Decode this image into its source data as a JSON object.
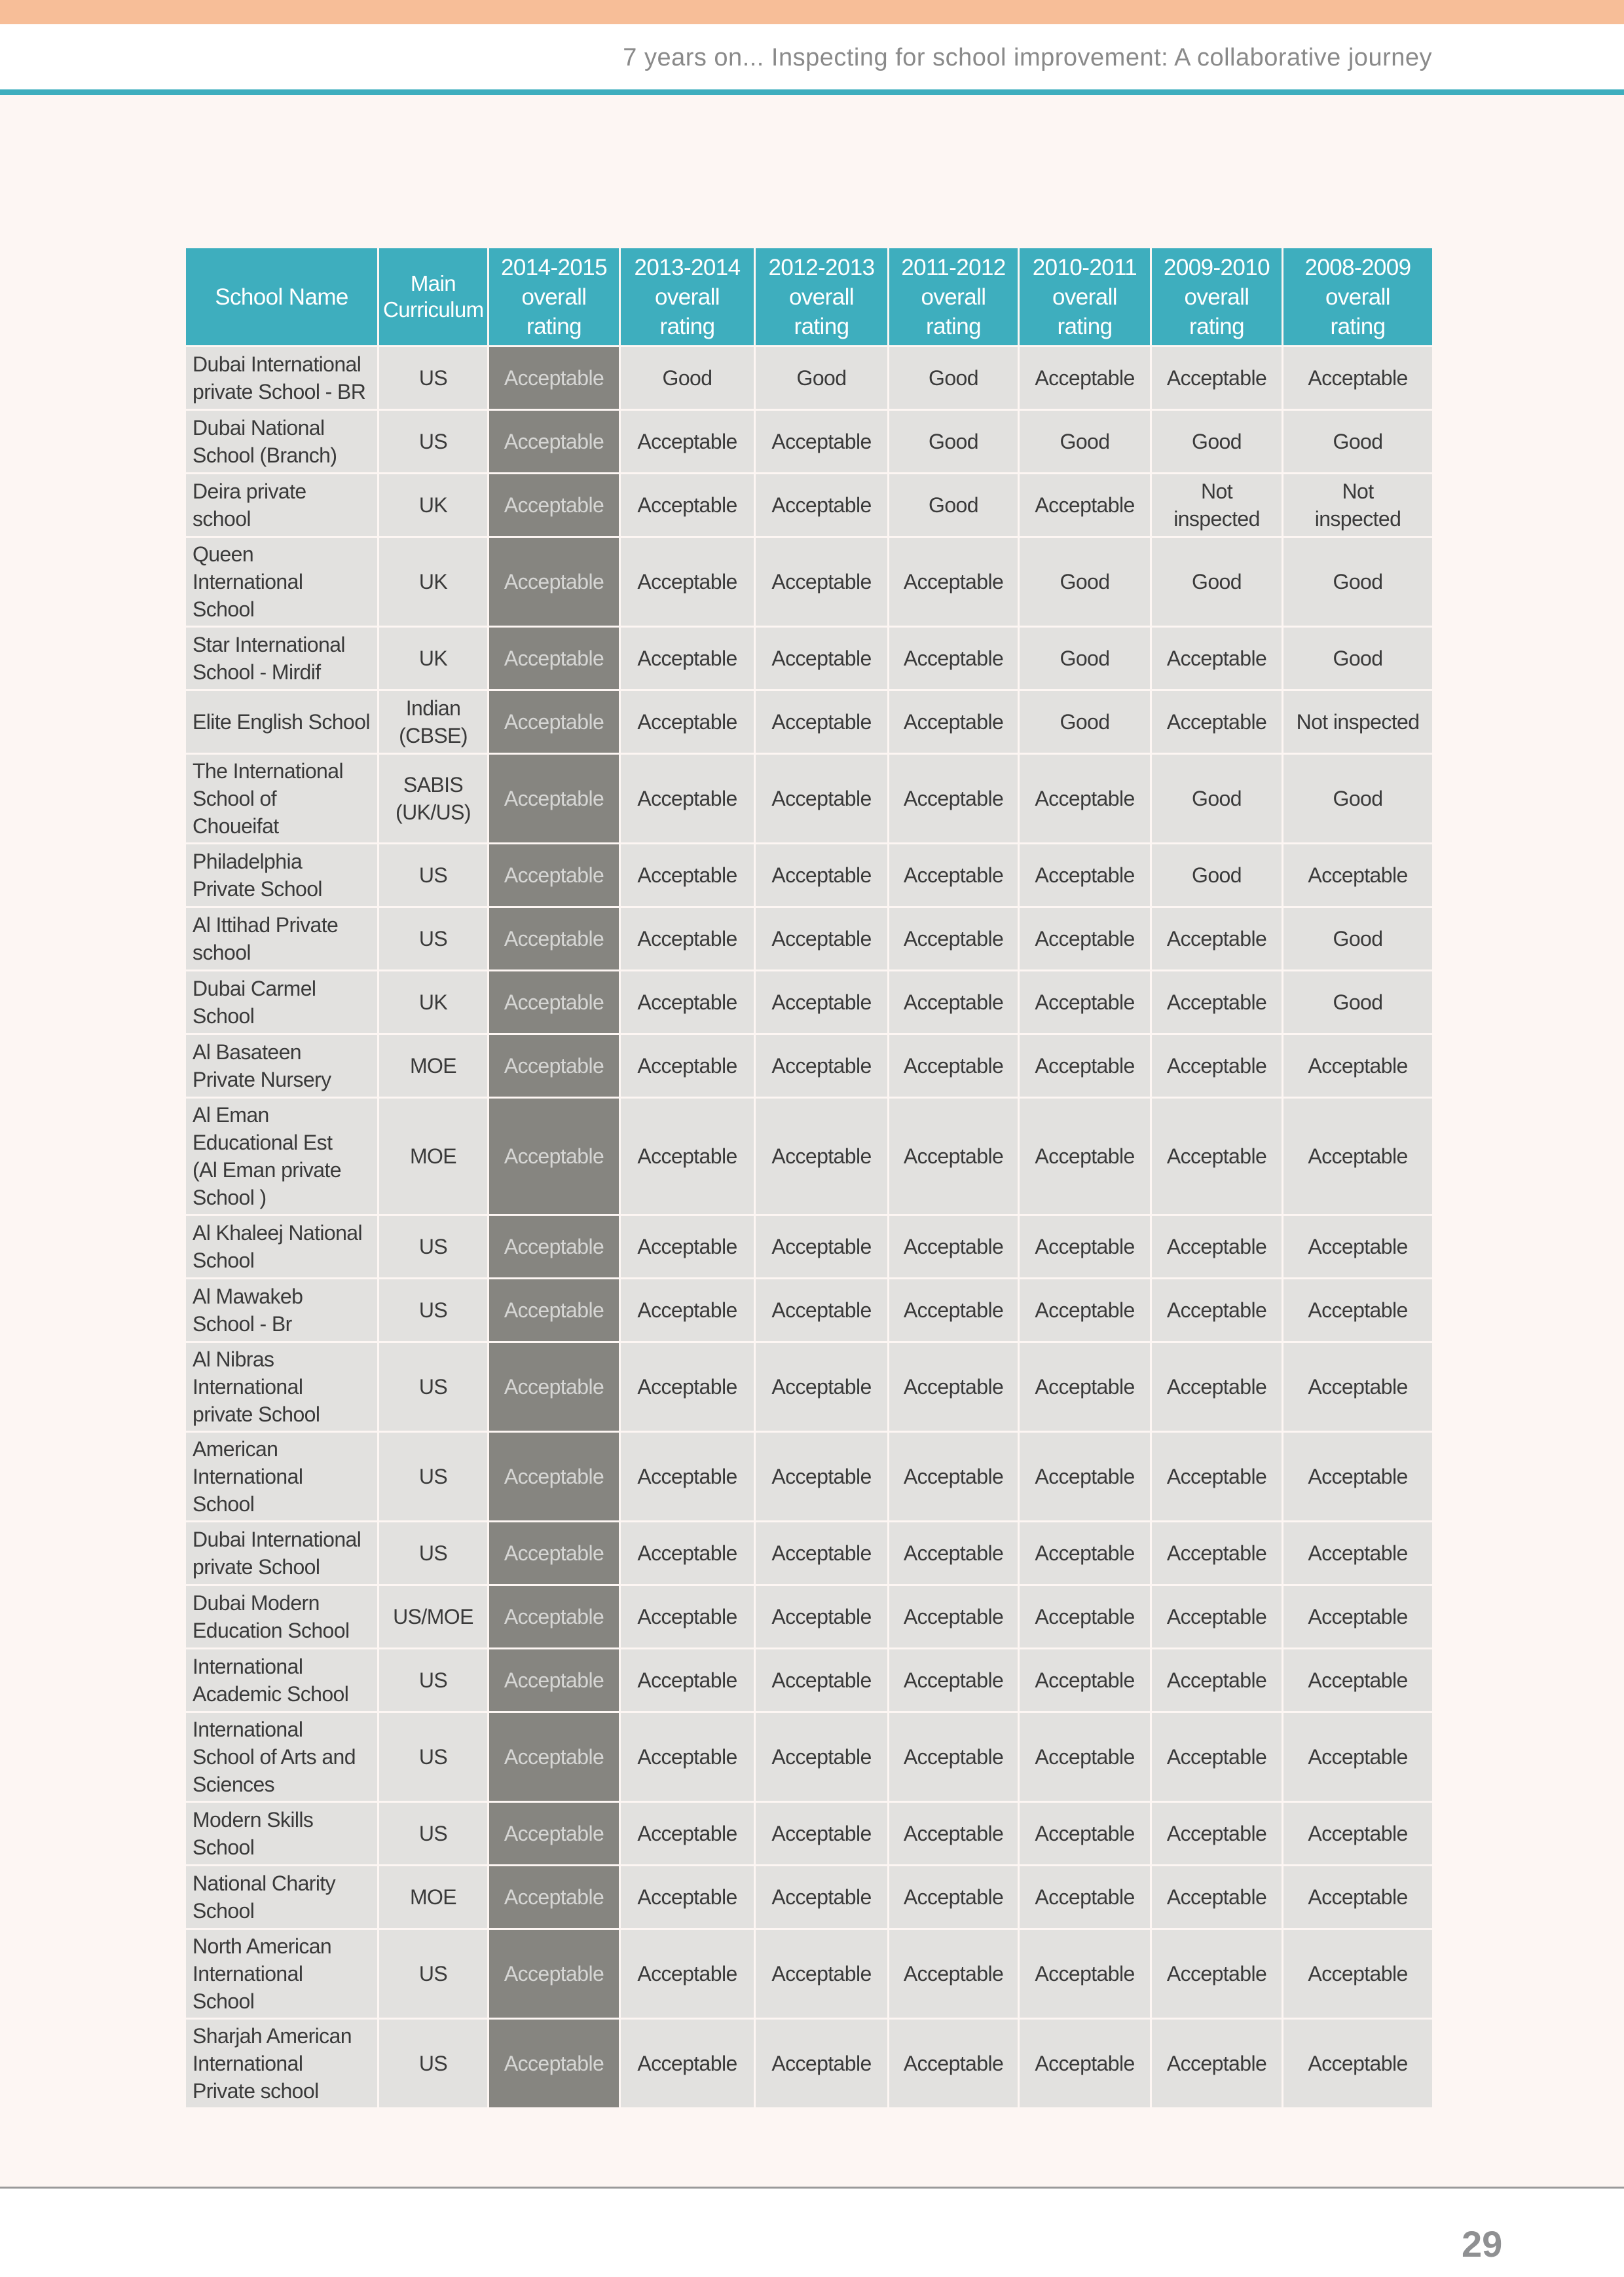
{
  "header": {
    "title": "7 years on... Inspecting for school improvement: A collaborative journey"
  },
  "colors": {
    "top_bar": "#f7be98",
    "accent": "#3eaebe",
    "highlight_column": "#868580",
    "cell": "#e2e1df"
  },
  "table": {
    "columns": [
      "School Name",
      "Main\nCurriculum",
      "2014-2015\noverall\nrating",
      "2013-2014\noverall\nrating",
      "2012-2013\noverall\nrating",
      "2011-2012\noverall\nrating",
      "2010-2011\noverall\nrating",
      "2009-2010\noverall\nrating",
      "2008-2009\noverall\nrating"
    ],
    "rows": [
      {
        "school": "Dubai International\nprivate School - BR",
        "curriculum": "US",
        "ratings": [
          "Acceptable",
          "Good",
          "Good",
          "Good",
          "Acceptable",
          "Acceptable",
          "Acceptable"
        ]
      },
      {
        "school": "Dubai National\nSchool (Branch)",
        "curriculum": "US",
        "ratings": [
          "Acceptable",
          "Acceptable",
          "Acceptable",
          "Good",
          "Good",
          "Good",
          "Good"
        ]
      },
      {
        "school": "Deira private\nschool",
        "curriculum": "UK",
        "ratings": [
          "Acceptable",
          "Acceptable",
          "Acceptable",
          "Good",
          "Acceptable",
          "Not\ninspected",
          "Not\ninspected"
        ]
      },
      {
        "school": "Queen\nInternational\nSchool",
        "curriculum": "UK",
        "ratings": [
          "Acceptable",
          "Acceptable",
          "Acceptable",
          "Acceptable",
          "Good",
          "Good",
          "Good"
        ]
      },
      {
        "school": "Star International\nSchool - Mirdif",
        "curriculum": "UK",
        "ratings": [
          "Acceptable",
          "Acceptable",
          "Acceptable",
          "Acceptable",
          "Good",
          "Acceptable",
          "Good"
        ]
      },
      {
        "school": "Elite English School",
        "curriculum": "Indian\n(CBSE)",
        "ratings": [
          "Acceptable",
          "Acceptable",
          "Acceptable",
          "Acceptable",
          "Good",
          "Acceptable",
          "Not inspected"
        ]
      },
      {
        "school": "The International\nSchool of\nChoueifat",
        "curriculum": "SABIS\n(UK/US)",
        "ratings": [
          "Acceptable",
          "Acceptable",
          "Acceptable",
          "Acceptable",
          "Acceptable",
          "Good",
          "Good"
        ]
      },
      {
        "school": "Philadelphia\nPrivate School",
        "curriculum": "US",
        "ratings": [
          "Acceptable",
          "Acceptable",
          "Acceptable",
          "Acceptable",
          "Acceptable",
          "Good",
          "Acceptable"
        ]
      },
      {
        "school": "Al Ittihad Private\nschool",
        "curriculum": "US",
        "ratings": [
          "Acceptable",
          "Acceptable",
          "Acceptable",
          "Acceptable",
          "Acceptable",
          "Acceptable",
          "Good"
        ]
      },
      {
        "school": "Dubai Carmel\nSchool",
        "curriculum": "UK",
        "ratings": [
          "Acceptable",
          "Acceptable",
          "Acceptable",
          "Acceptable",
          "Acceptable",
          "Acceptable",
          "Good"
        ]
      },
      {
        "school": "Al Basateen\nPrivate Nursery",
        "curriculum": "MOE",
        "ratings": [
          "Acceptable",
          "Acceptable",
          "Acceptable",
          "Acceptable",
          "Acceptable",
          "Acceptable",
          "Acceptable"
        ]
      },
      {
        "school": "Al Eman\nEducational Est\n(Al Eman private\nSchool )",
        "curriculum": "MOE",
        "ratings": [
          "Acceptable",
          "Acceptable",
          "Acceptable",
          "Acceptable",
          "Acceptable",
          "Acceptable",
          "Acceptable"
        ]
      },
      {
        "school": "Al Khaleej National\nSchool",
        "curriculum": "US",
        "ratings": [
          "Acceptable",
          "Acceptable",
          "Acceptable",
          "Acceptable",
          "Acceptable",
          "Acceptable",
          "Acceptable"
        ]
      },
      {
        "school": "Al Mawakeb\nSchool - Br",
        "curriculum": "US",
        "ratings": [
          "Acceptable",
          "Acceptable",
          "Acceptable",
          "Acceptable",
          "Acceptable",
          "Acceptable",
          "Acceptable"
        ]
      },
      {
        "school": "Al Nibras\nInternational\nprivate School",
        "curriculum": "US",
        "ratings": [
          "Acceptable",
          "Acceptable",
          "Acceptable",
          "Acceptable",
          "Acceptable",
          "Acceptable",
          "Acceptable"
        ]
      },
      {
        "school": "American\nInternational\nSchool",
        "curriculum": "US",
        "ratings": [
          "Acceptable",
          "Acceptable",
          "Acceptable",
          "Acceptable",
          "Acceptable",
          "Acceptable",
          "Acceptable"
        ]
      },
      {
        "school": "Dubai International\nprivate School",
        "curriculum": "US",
        "ratings": [
          "Acceptable",
          "Acceptable",
          "Acceptable",
          "Acceptable",
          "Acceptable",
          "Acceptable",
          "Acceptable"
        ]
      },
      {
        "school": "Dubai Modern\nEducation School",
        "curriculum": "US/MOE",
        "ratings": [
          "Acceptable",
          "Acceptable",
          "Acceptable",
          "Acceptable",
          "Acceptable",
          "Acceptable",
          "Acceptable"
        ]
      },
      {
        "school": "International\nAcademic School",
        "curriculum": "US",
        "ratings": [
          "Acceptable",
          "Acceptable",
          "Acceptable",
          "Acceptable",
          "Acceptable",
          "Acceptable",
          "Acceptable"
        ]
      },
      {
        "school": "International\nSchool of Arts and\nSciences",
        "curriculum": "US",
        "ratings": [
          "Acceptable",
          "Acceptable",
          "Acceptable",
          "Acceptable",
          "Acceptable",
          "Acceptable",
          "Acceptable"
        ]
      },
      {
        "school": "Modern Skills\nSchool",
        "curriculum": "US",
        "ratings": [
          "Acceptable",
          "Acceptable",
          "Acceptable",
          "Acceptable",
          "Acceptable",
          "Acceptable",
          "Acceptable"
        ]
      },
      {
        "school": "National Charity\nSchool",
        "curriculum": "MOE",
        "ratings": [
          "Acceptable",
          "Acceptable",
          "Acceptable",
          "Acceptable",
          "Acceptable",
          "Acceptable",
          "Acceptable"
        ]
      },
      {
        "school": "North American\nInternational\nSchool",
        "curriculum": "US",
        "ratings": [
          "Acceptable",
          "Acceptable",
          "Acceptable",
          "Acceptable",
          "Acceptable",
          "Acceptable",
          "Acceptable"
        ]
      },
      {
        "school": "Sharjah  American\nInternational\nPrivate school",
        "curriculum": "US",
        "ratings": [
          "Acceptable",
          "Acceptable",
          "Acceptable",
          "Acceptable",
          "Acceptable",
          "Acceptable",
          "Acceptable"
        ]
      }
    ]
  },
  "footer": {
    "page_number": "29"
  }
}
